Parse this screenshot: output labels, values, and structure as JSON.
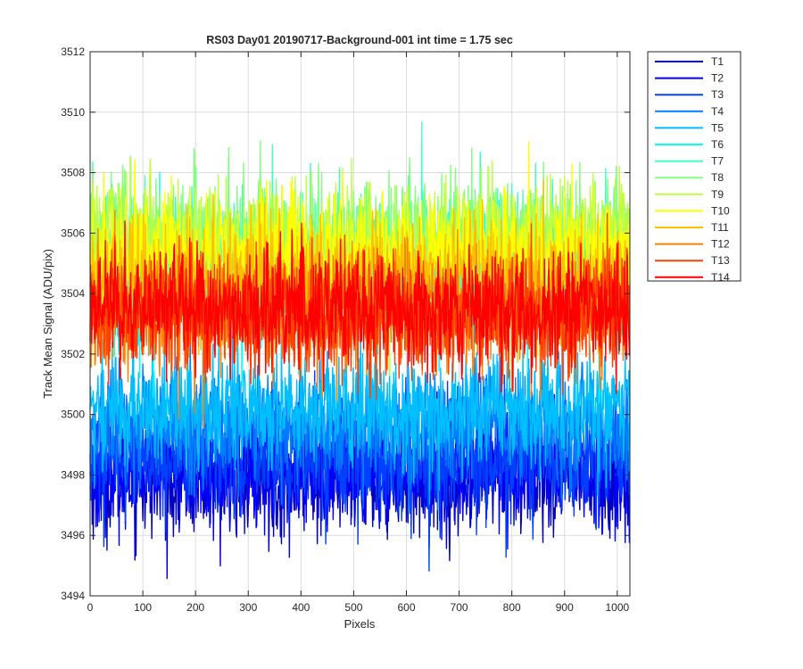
{
  "figure": {
    "title": "RS03 Day01 20190717-Background-001 int time = 1.75 sec"
  },
  "chart_data": {
    "type": "line",
    "title": "RS03 Day01 20190717-Background-001 int time = 1.75 sec",
    "xlabel": "Pixels",
    "ylabel": "Track Mean Signal (ADU/pix)",
    "xlim": [
      0,
      1024
    ],
    "ylim": [
      3494,
      3512
    ],
    "x_ticks": [
      "0",
      "100",
      "200",
      "300",
      "400",
      "500",
      "600",
      "700",
      "800",
      "900",
      "1000"
    ],
    "y_ticks": [
      "3494",
      "3496",
      "3498",
      "3500",
      "3502",
      "3504",
      "3506",
      "3508",
      "3510",
      "3512"
    ],
    "grid": true,
    "legend_position": "outside-top-right",
    "n_points": 1024,
    "series": [
      {
        "name": "T1",
        "color": "#0000bd",
        "mean": 3497.9,
        "noise_sd": 0.95
      },
      {
        "name": "T2",
        "color": "#0000ff",
        "mean": 3498.2,
        "noise_sd": 0.95
      },
      {
        "name": "T3",
        "color": "#0040ff",
        "mean": 3498.6,
        "noise_sd": 0.95
      },
      {
        "name": "T4",
        "color": "#0080ff",
        "mean": 3499.6,
        "noise_sd": 0.95
      },
      {
        "name": "T5",
        "color": "#00bfff",
        "mean": 3500.2,
        "noise_sd": 0.95
      },
      {
        "name": "T6",
        "color": "#00ffff",
        "mean": 3504.1,
        "noise_sd": 1.0
      },
      {
        "name": "T7",
        "color": "#40ffbf",
        "mean": 3505.4,
        "noise_sd": 1.05
      },
      {
        "name": "T8",
        "color": "#80ff80",
        "mean": 3505.7,
        "noise_sd": 1.05
      },
      {
        "name": "T9",
        "color": "#bfff40",
        "mean": 3505.6,
        "noise_sd": 1.05
      },
      {
        "name": "T10",
        "color": "#ffff00",
        "mean": 3505.3,
        "noise_sd": 1.0
      },
      {
        "name": "T11",
        "color": "#ffbf00",
        "mean": 3504.4,
        "noise_sd": 1.0
      },
      {
        "name": "T12",
        "color": "#ff8000",
        "mean": 3503.4,
        "noise_sd": 1.0
      },
      {
        "name": "T13",
        "color": "#ff4000",
        "mean": 3503.3,
        "noise_sd": 1.0
      },
      {
        "name": "T14",
        "color": "#ff0000",
        "mean": 3503.5,
        "noise_sd": 0.95
      }
    ]
  }
}
